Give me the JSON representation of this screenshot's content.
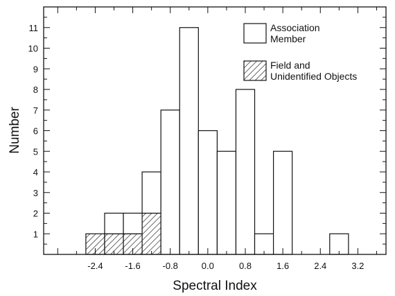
{
  "chart_data": {
    "type": "bar",
    "stacked": true,
    "xlabel": "Spectral Index",
    "ylabel": "Number",
    "x_ticks": [
      "-2.4",
      "-1.6",
      "-0.8",
      "0.0",
      "0.8",
      "1.6",
      "2.4",
      "3.2"
    ],
    "y_ticks": [
      "1",
      "2",
      "3",
      "4",
      "5",
      "6",
      "7",
      "8",
      "9",
      "10",
      "11"
    ],
    "xlim": [
      -3.5,
      3.8
    ],
    "ylim": [
      0,
      12
    ],
    "bin_width": 0.4,
    "bins": [
      -2.6,
      -2.2,
      -1.8,
      -1.4,
      -1.0,
      -0.6,
      -0.2,
      0.2,
      0.6,
      1.0,
      1.4,
      1.8,
      2.2,
      2.6
    ],
    "series": [
      {
        "name": "Association Member",
        "pattern": "open",
        "values": [
          0,
          1,
          1,
          2,
          7,
          11,
          6,
          5,
          8,
          1,
          5,
          0,
          0,
          1
        ]
      },
      {
        "name": "Field and Unidentified Objects",
        "pattern": "hatched",
        "values": [
          1,
          1,
          1,
          2,
          0,
          0,
          0,
          0,
          0,
          0,
          0,
          0,
          0,
          0
        ]
      }
    ],
    "legend": {
      "position": "top-right",
      "items": [
        {
          "lines": [
            "Association",
            "Member"
          ],
          "pattern": "open"
        },
        {
          "lines": [
            "Field and",
            "Unidentified Objects"
          ],
          "pattern": "hatched"
        }
      ]
    },
    "colors": {
      "line": "#111111",
      "background": "#ffffff"
    }
  }
}
